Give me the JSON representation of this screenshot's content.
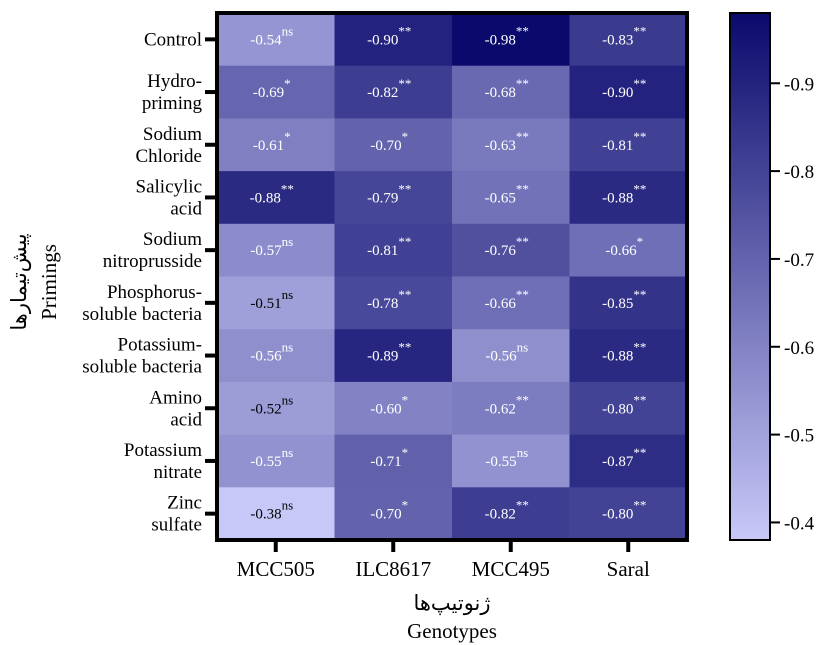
{
  "chart_data": {
    "type": "heatmap",
    "xlabel": "Genotypes",
    "xlabel_alt": "ژنوتیپ‌ها",
    "ylabel": "Primings",
    "ylabel_alt": "پیش‌تیمارها",
    "columns": [
      "MCC505",
      "ILC8617",
      "MCC495",
      "Saral"
    ],
    "rows": [
      [
        "Control"
      ],
      [
        "Hydro-",
        "priming"
      ],
      [
        "Sodium",
        "Chloride"
      ],
      [
        "Salicylic",
        "acid"
      ],
      [
        "Sodium",
        "nitroprusside"
      ],
      [
        "Phosphorus-",
        "soluble bacteria"
      ],
      [
        "Potassium-",
        "soluble bacteria"
      ],
      [
        "Amino",
        "acid"
      ],
      [
        "Potassium",
        "nitrate"
      ],
      [
        "Zinc",
        "sulfate"
      ]
    ],
    "values": [
      [
        -0.54,
        -0.9,
        -0.98,
        -0.83
      ],
      [
        -0.69,
        -0.82,
        -0.68,
        -0.9
      ],
      [
        -0.61,
        -0.7,
        -0.63,
        -0.81
      ],
      [
        -0.88,
        -0.79,
        -0.65,
        -0.88
      ],
      [
        -0.57,
        -0.81,
        -0.76,
        -0.66
      ],
      [
        -0.51,
        -0.78,
        -0.66,
        -0.85
      ],
      [
        -0.56,
        -0.89,
        -0.56,
        -0.88
      ],
      [
        -0.52,
        -0.6,
        -0.62,
        -0.8
      ],
      [
        -0.55,
        -0.71,
        -0.55,
        -0.87
      ],
      [
        -0.38,
        -0.7,
        -0.82,
        -0.8
      ]
    ],
    "value_labels": [
      [
        "-0.54",
        "-0.90",
        "-0.98",
        "-0.83"
      ],
      [
        "-0.69",
        "-0.82",
        "-0.68",
        "-0.90"
      ],
      [
        "-0.61",
        "-0.70",
        "-0.63",
        "-0.81"
      ],
      [
        "-0.88",
        "-0.79",
        "-0.65",
        "-0.88"
      ],
      [
        "-0.57",
        "-0.81",
        "-0.76",
        "-0.66"
      ],
      [
        "-0.51",
        "-0.78",
        "-0.66",
        "-0.85"
      ],
      [
        "-0.56",
        "-0.89",
        "-0.56",
        "-0.88"
      ],
      [
        "-0.52",
        "-0.60",
        "-0.62",
        "-0.80"
      ],
      [
        "-0.55",
        "-0.71",
        "-0.55",
        "-0.87"
      ],
      [
        "-0.38",
        "-0.70",
        "-0.82",
        "-0.80"
      ]
    ],
    "significance": [
      [
        "ns",
        "**",
        "**",
        "**"
      ],
      [
        "*",
        "**",
        "**",
        "**"
      ],
      [
        "*",
        "*",
        "**",
        "**"
      ],
      [
        "**",
        "**",
        "**",
        "**"
      ],
      [
        "ns",
        "**",
        "**",
        "*"
      ],
      [
        "ns",
        "**",
        "**",
        "**"
      ],
      [
        "ns",
        "**",
        "ns",
        "**"
      ],
      [
        "ns",
        "*",
        "**",
        "**"
      ],
      [
        "ns",
        "*",
        "ns",
        "**"
      ],
      [
        "ns",
        "*",
        "**",
        "**"
      ]
    ],
    "color_scale": {
      "min": -0.98,
      "max": -0.38,
      "color_low": "#c8c8f8",
      "color_high": "#0a0a6c",
      "ticks": [
        -0.9,
        -0.8,
        -0.7,
        -0.6,
        -0.5,
        -0.4
      ],
      "tick_labels": [
        "-0.9",
        "-0.8",
        "-0.7",
        "-0.6",
        "-0.5",
        "-0.4"
      ]
    },
    "grid": false,
    "legend": "colorbar right"
  }
}
